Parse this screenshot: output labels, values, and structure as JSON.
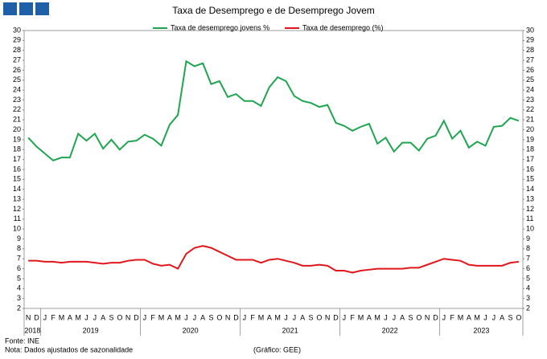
{
  "chart_data": {
    "type": "line",
    "title": "Taxa de Desemprego e de Desemprego Jovem",
    "source": "Fonte: INE",
    "note": "Nota: Dados ajustados de sazonalidade",
    "credit": "(Gráfico: GEE)",
    "categories": [
      "N",
      "D",
      "J",
      "F",
      "M",
      "A",
      "M",
      "J",
      "J",
      "A",
      "S",
      "O",
      "N",
      "D",
      "J",
      "F",
      "M",
      "A",
      "M",
      "J",
      "J",
      "A",
      "S",
      "O",
      "N",
      "D",
      "J",
      "F",
      "M",
      "A",
      "M",
      "J",
      "J",
      "A",
      "S",
      "O",
      "N",
      "D",
      "J",
      "F",
      "M",
      "A",
      "M",
      "J",
      "J",
      "A",
      "S",
      "O",
      "N",
      "D",
      "J",
      "F",
      "M",
      "A",
      "M",
      "J",
      "J",
      "A",
      "S",
      "O"
    ],
    "years": [
      "2018",
      "2019",
      "2020",
      "2021",
      "2022",
      "2023"
    ],
    "series": [
      {
        "name": "Taxa de desemprego jovens %",
        "color": "#1fa550",
        "values": [
          19.2,
          18.3,
          17.6,
          16.9,
          17.2,
          17.2,
          19.6,
          18.9,
          19.6,
          18.1,
          19.0,
          18.0,
          18.8,
          18.9,
          19.5,
          19.1,
          18.4,
          20.5,
          21.5,
          26.9,
          26.4,
          26.7,
          24.6,
          24.9,
          23.3,
          23.6,
          22.9,
          22.9,
          22.4,
          24.3,
          25.3,
          24.9,
          23.4,
          22.9,
          22.7,
          22.3,
          22.5,
          20.7,
          20.4,
          19.9,
          20.3,
          20.6,
          18.6,
          19.2,
          17.8,
          18.7,
          18.7,
          17.9,
          19.1,
          19.4,
          20.9,
          19.1,
          19.9,
          18.2,
          18.8,
          18.4,
          20.3,
          20.4,
          21.2,
          20.9
        ]
      },
      {
        "name": "Taxa de desemprego (%)",
        "color": "#e0161b",
        "values": [
          6.8,
          6.8,
          6.7,
          6.7,
          6.6,
          6.7,
          6.7,
          6.7,
          6.6,
          6.5,
          6.6,
          6.6,
          6.8,
          6.9,
          6.9,
          6.5,
          6.3,
          6.4,
          6.0,
          7.5,
          8.1,
          8.3,
          8.1,
          7.7,
          7.3,
          6.9,
          6.9,
          6.9,
          6.6,
          6.9,
          7.0,
          6.8,
          6.6,
          6.3,
          6.3,
          6.4,
          6.3,
          5.8,
          5.8,
          5.6,
          5.8,
          5.9,
          6.0,
          6.0,
          6.0,
          6.0,
          6.1,
          6.1,
          6.4,
          6.7,
          7.0,
          6.9,
          6.8,
          6.4,
          6.3,
          6.3,
          6.3,
          6.3,
          6.6,
          6.7
        ]
      }
    ],
    "ylim": [
      2,
      30
    ],
    "yticks": [
      2,
      3,
      4,
      5,
      6,
      7,
      8,
      9,
      10,
      11,
      12,
      13,
      14,
      15,
      16,
      17,
      18,
      19,
      20,
      21,
      22,
      23,
      24,
      25,
      26,
      27,
      28,
      29,
      30
    ]
  }
}
